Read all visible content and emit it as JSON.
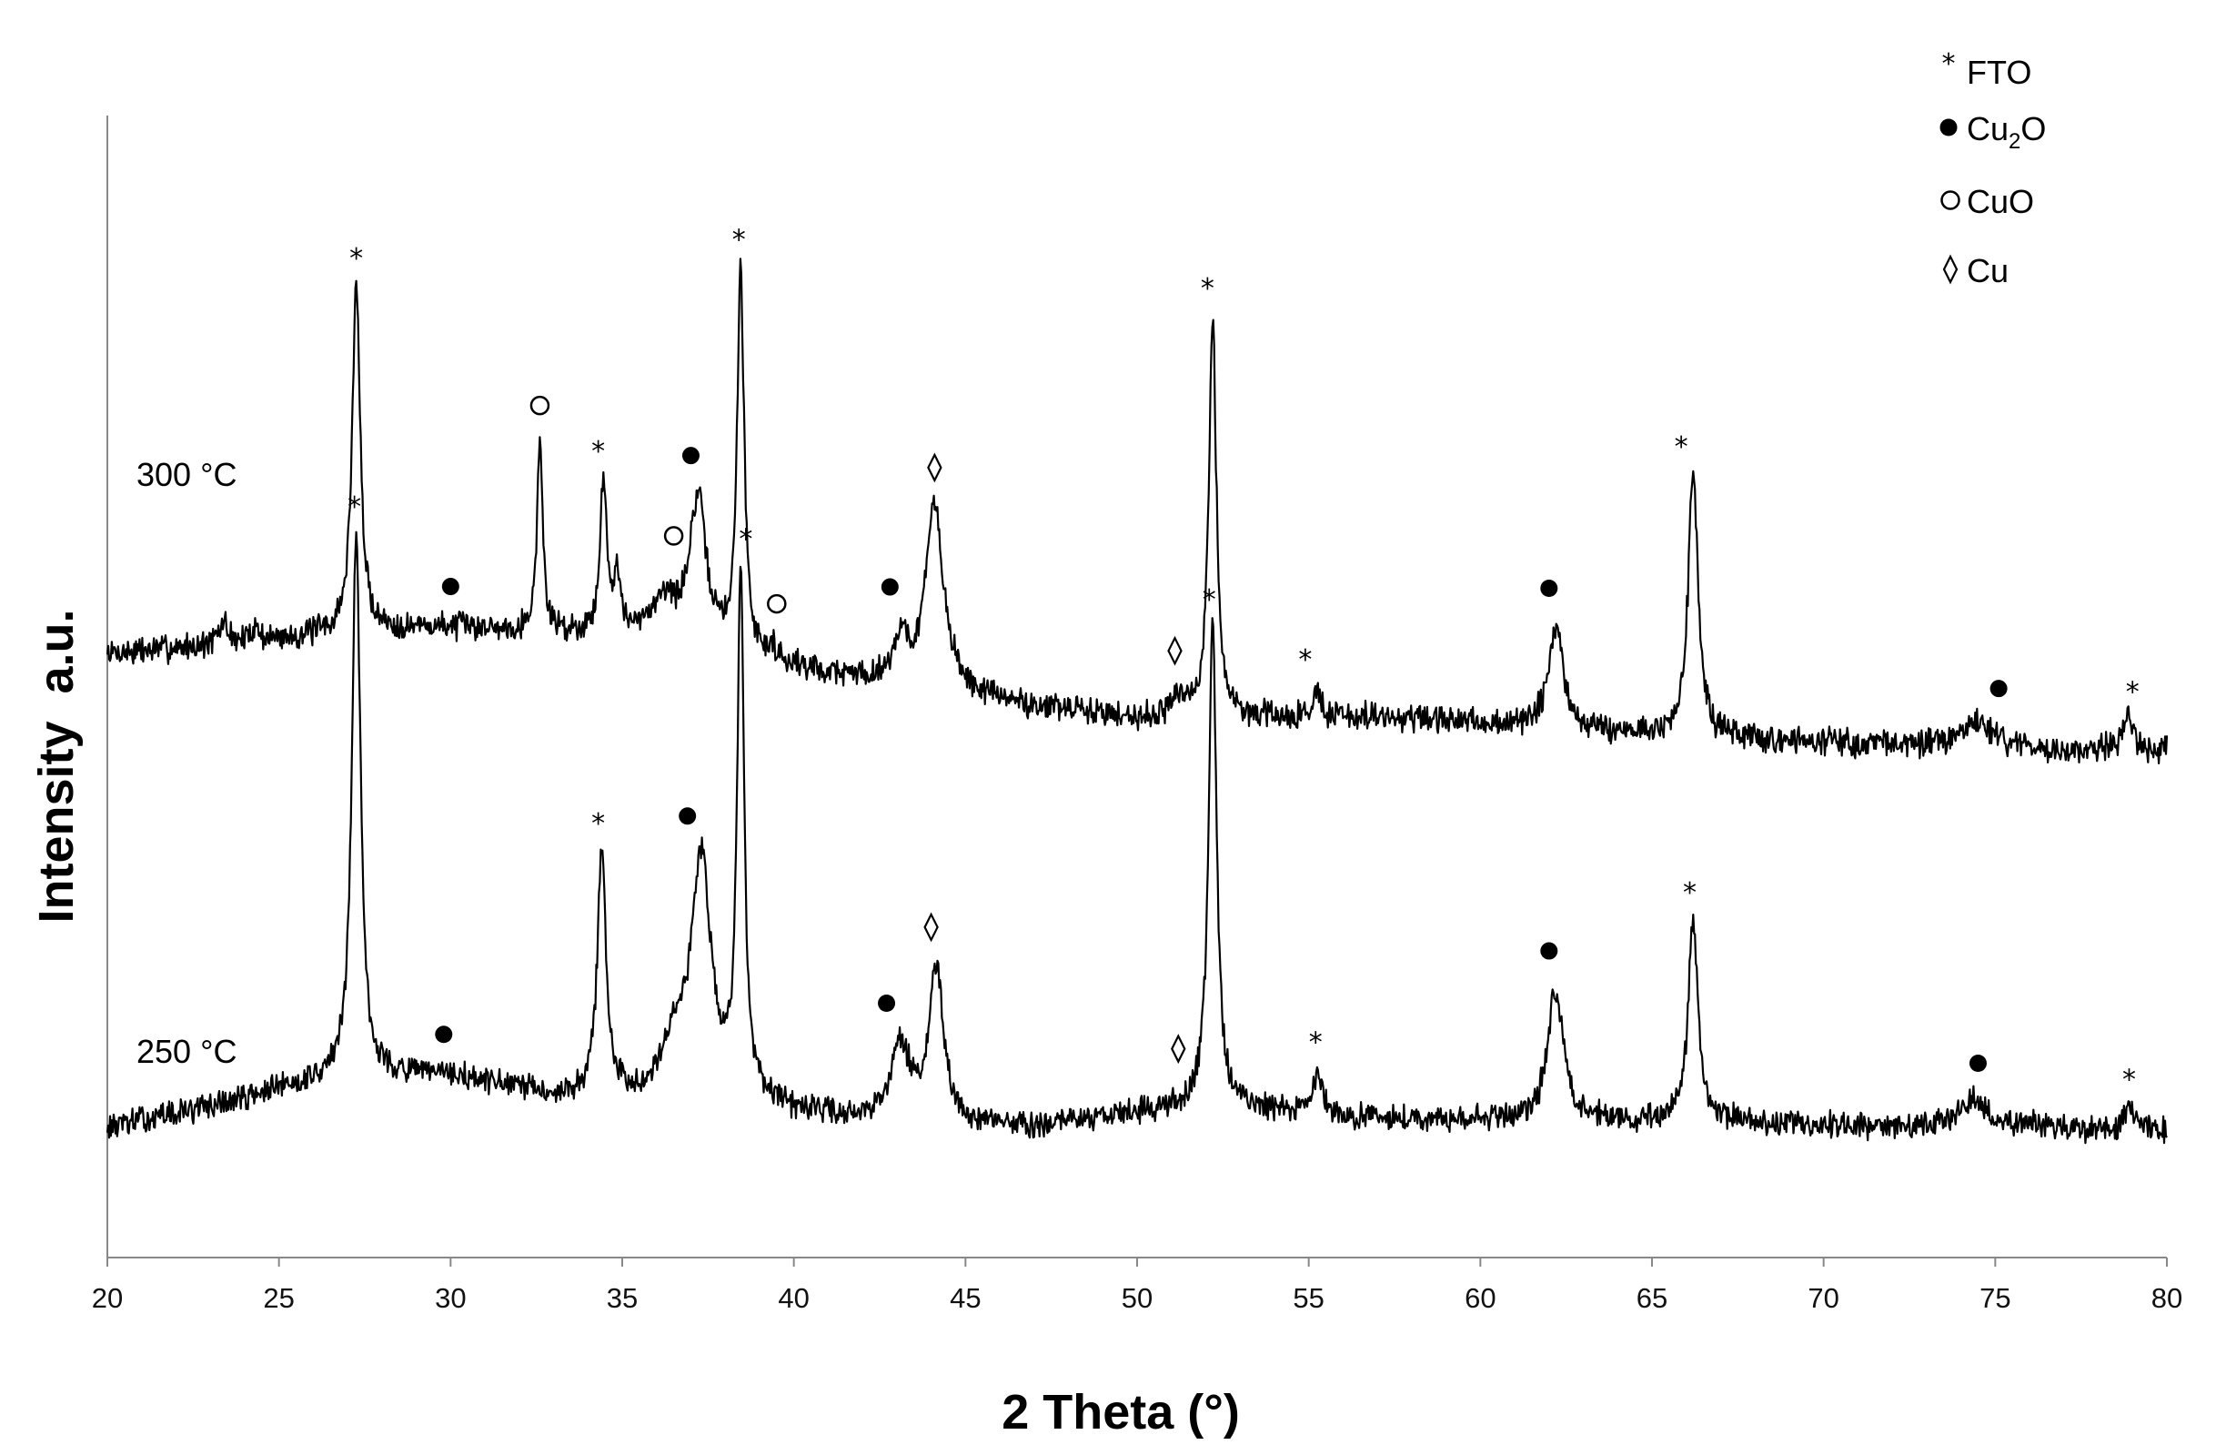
{
  "chart_data": {
    "type": "line",
    "title": "",
    "xlabel": "2 Theta (°)",
    "ylabel": "Intensity  a.u.",
    "xlim": [
      20,
      80
    ],
    "xticks": [
      20,
      25,
      30,
      35,
      40,
      45,
      50,
      55,
      60,
      65,
      70,
      75,
      80
    ],
    "grid": false,
    "legend_position": "top-right",
    "legend": [
      {
        "symbol": "*",
        "marker": "star",
        "label": "FTO"
      },
      {
        "symbol": "●",
        "marker": "filled-circle",
        "label": "Cu",
        "subscript": "2",
        "suffix": "O"
      },
      {
        "symbol": "○",
        "marker": "open-circle",
        "label": "CuO"
      },
      {
        "symbol": "◊",
        "marker": "diamond",
        "label": "Cu"
      }
    ],
    "series": [
      {
        "name": "300 °C",
        "baseline": [
          [
            20,
            0.02
          ],
          [
            24,
            0.04
          ],
          [
            27,
            0.06
          ],
          [
            30,
            0.07
          ],
          [
            35,
            0.05
          ],
          [
            38,
            0.02
          ],
          [
            41,
            -0.02
          ],
          [
            44,
            -0.05
          ],
          [
            47,
            -0.08
          ],
          [
            50,
            -0.1
          ],
          [
            53,
            -0.1
          ],
          [
            57,
            -0.1
          ],
          [
            62,
            -0.12
          ],
          [
            67,
            -0.14
          ],
          [
            72,
            -0.15
          ],
          [
            76,
            -0.16
          ],
          [
            80,
            -0.16
          ]
        ],
        "peaks": [
          {
            "x": 23.4,
            "h": 0.04,
            "w": 0.15
          },
          {
            "x": 24.3,
            "h": 0.03,
            "w": 0.12
          },
          {
            "x": 27.25,
            "h": 0.65,
            "w": 0.14
          },
          {
            "x": 32.6,
            "h": 0.35,
            "w": 0.1
          },
          {
            "x": 34.45,
            "h": 0.28,
            "w": 0.12
          },
          {
            "x": 34.85,
            "h": 0.12,
            "w": 0.1
          },
          {
            "x": 36.2,
            "h": 0.08,
            "w": 0.4
          },
          {
            "x": 37.2,
            "h": 0.27,
            "w": 0.3
          },
          {
            "x": 38.45,
            "h": 0.71,
            "w": 0.12
          },
          {
            "x": 39.4,
            "h": 0.02,
            "w": 0.12
          },
          {
            "x": 43.1,
            "h": 0.08,
            "w": 0.25
          },
          {
            "x": 44.1,
            "h": 0.34,
            "w": 0.32
          },
          {
            "x": 51.2,
            "h": 0.04,
            "w": 0.2
          },
          {
            "x": 52.2,
            "h": 0.75,
            "w": 0.13
          },
          {
            "x": 55.25,
            "h": 0.06,
            "w": 0.12
          },
          {
            "x": 62.2,
            "h": 0.19,
            "w": 0.25
          },
          {
            "x": 66.2,
            "h": 0.5,
            "w": 0.17
          },
          {
            "x": 74.5,
            "h": 0.05,
            "w": 0.5
          },
          {
            "x": 78.85,
            "h": 0.06,
            "w": 0.15
          }
        ]
      },
      {
        "name": "250 °C",
        "baseline": [
          [
            20,
            0.02
          ],
          [
            23,
            0.06
          ],
          [
            26,
            0.11
          ],
          [
            28,
            0.12
          ],
          [
            30,
            0.12
          ],
          [
            33,
            0.08
          ],
          [
            36,
            0.07
          ],
          [
            38,
            0.06
          ],
          [
            41,
            0.04
          ],
          [
            44,
            0.02
          ],
          [
            47,
            0.02
          ],
          [
            50,
            0.05
          ],
          [
            52,
            0.06
          ],
          [
            56,
            0.04
          ],
          [
            62,
            0.03
          ],
          [
            67,
            0.03
          ],
          [
            72,
            0.02
          ],
          [
            76,
            0.02
          ],
          [
            80,
            0.01
          ]
        ],
        "peaks": [
          {
            "x": 27.25,
            "h": 1.07,
            "w": 0.15
          },
          {
            "x": 34.4,
            "h": 0.48,
            "w": 0.15
          },
          {
            "x": 36.5,
            "h": 0.1,
            "w": 0.45
          },
          {
            "x": 37.3,
            "h": 0.47,
            "w": 0.35
          },
          {
            "x": 38.45,
            "h": 1.02,
            "w": 0.12
          },
          {
            "x": 43.1,
            "h": 0.15,
            "w": 0.35
          },
          {
            "x": 44.15,
            "h": 0.3,
            "w": 0.25
          },
          {
            "x": 52.2,
            "h": 0.95,
            "w": 0.14
          },
          {
            "x": 55.25,
            "h": 0.09,
            "w": 0.13
          },
          {
            "x": 62.2,
            "h": 0.26,
            "w": 0.28
          },
          {
            "x": 66.2,
            "h": 0.4,
            "w": 0.17
          },
          {
            "x": 74.4,
            "h": 0.05,
            "w": 0.5
          },
          {
            "x": 78.9,
            "h": 0.05,
            "w": 0.15
          }
        ]
      }
    ],
    "annotations": [
      {
        "marker": "star",
        "x": 27.25,
        "series": "300 °C"
      },
      {
        "marker": "star",
        "x": 34.3,
        "series": "300 °C"
      },
      {
        "marker": "star",
        "x": 38.4,
        "series": "300 °C"
      },
      {
        "marker": "star",
        "x": 52.05,
        "series": "300 °C"
      },
      {
        "marker": "star",
        "x": 54.9,
        "series": "300 °C"
      },
      {
        "marker": "star",
        "x": 65.85,
        "series": "300 °C"
      },
      {
        "marker": "star",
        "x": 79.0,
        "series": "300 °C"
      },
      {
        "marker": "open-circle",
        "x": 32.6,
        "series": "300 °C"
      },
      {
        "marker": "open-circle",
        "x": 36.5,
        "series": "300 °C"
      },
      {
        "marker": "open-circle",
        "x": 39.5,
        "series": "300 °C"
      },
      {
        "marker": "filled-circle",
        "x": 30.0,
        "series": "300 °C"
      },
      {
        "marker": "filled-circle",
        "x": 37.0,
        "series": "300 °C"
      },
      {
        "marker": "filled-circle",
        "x": 42.8,
        "series": "300 °C"
      },
      {
        "marker": "filled-circle",
        "x": 62.0,
        "series": "300 °C"
      },
      {
        "marker": "filled-circle",
        "x": 75.1,
        "series": "300 °C"
      },
      {
        "marker": "diamond",
        "x": 44.1,
        "series": "300 °C"
      },
      {
        "marker": "diamond",
        "x": 51.1,
        "series": "300 °C"
      },
      {
        "marker": "star",
        "x": 27.2,
        "series": "250 °C"
      },
      {
        "marker": "star",
        "x": 34.3,
        "series": "250 °C"
      },
      {
        "marker": "star",
        "x": 38.6,
        "series": "250 °C"
      },
      {
        "marker": "star",
        "x": 52.1,
        "series": "250 °C"
      },
      {
        "marker": "star",
        "x": 55.2,
        "series": "250 °C"
      },
      {
        "marker": "star",
        "x": 66.1,
        "series": "250 °C"
      },
      {
        "marker": "star",
        "x": 78.9,
        "series": "250 °C"
      },
      {
        "marker": "filled-circle",
        "x": 29.8,
        "series": "250 °C"
      },
      {
        "marker": "filled-circle",
        "x": 36.9,
        "series": "250 °C"
      },
      {
        "marker": "filled-circle",
        "x": 42.7,
        "series": "250 °C"
      },
      {
        "marker": "filled-circle",
        "x": 62.0,
        "series": "250 °C"
      },
      {
        "marker": "filled-circle",
        "x": 74.5,
        "series": "250 °C"
      },
      {
        "marker": "diamond",
        "x": 44.0,
        "series": "250 °C"
      },
      {
        "marker": "diamond",
        "x": 51.2,
        "series": "250 °C"
      }
    ]
  }
}
